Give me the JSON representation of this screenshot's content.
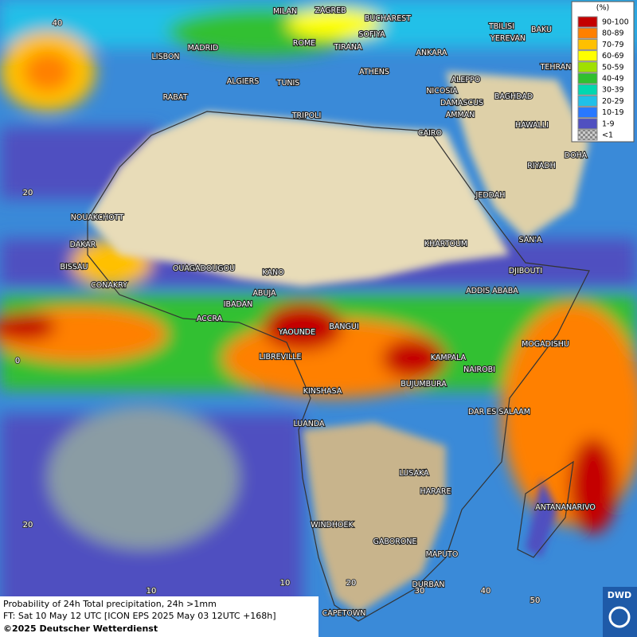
{
  "map": {
    "legend": {
      "title": "(%)",
      "entries": [
        {
          "label": "90-100",
          "color": "#c40000"
        },
        {
          "label": "80-89",
          "color": "#ff8000"
        },
        {
          "label": "70-79",
          "color": "#ffc000"
        },
        {
          "label": "60-69",
          "color": "#ffff00"
        },
        {
          "label": "50-59",
          "color": "#a0e000"
        },
        {
          "label": "40-49",
          "color": "#30c030"
        },
        {
          "label": "30-39",
          "color": "#00d8b0"
        },
        {
          "label": "20-29",
          "color": "#20c0e8"
        },
        {
          "label": "10-19",
          "color": "#2878ff"
        },
        {
          "label": "1-9",
          "color": "#5050c0"
        },
        {
          "label": "<1",
          "color": "#a8a8a8"
        }
      ]
    },
    "cities": [
      "MILAN",
      "ZAGREB",
      "BUCHAREST",
      "TBILISI",
      "BAKU",
      "MADRID",
      "ROME",
      "SOFIYA",
      "TIRANA",
      "YEREVAN",
      "LISBON",
      "ANKARA",
      "TEHRAN",
      "ATHENS",
      "ALGIERS",
      "TUNIS",
      "ALEPPO",
      "NICOSIA",
      "BAGHDAD",
      "RABAT",
      "DAMASCUS",
      "TRIPOLI",
      "AMMAN",
      "HAWALLI",
      "CAIRO",
      "DOHA",
      "RIYADH",
      "JEDDAH",
      "NOUAKCHOTT",
      "DAKAR",
      "KHARTOUM",
      "SAN'A",
      "BISSAU",
      "OUAGADOUGOU",
      "DJIBOUTI",
      "KANO",
      "ABUJA",
      "CONAKRY",
      "ADDIS ABABA",
      "IBADAN",
      "ACCRA",
      "BANGUI",
      "YAOUNDE",
      "MOGADISHU",
      "LIBREVILLE",
      "KAMPALA",
      "NAIROBI",
      "BUJUMBURA",
      "KINSHASA",
      "DAR ES SALAAM",
      "LUANDA",
      "LUSAKA",
      "HARARE",
      "ANTANANARIVO",
      "WINDHOEK",
      "GABORONE",
      "MAPUTO",
      "DURBAN",
      "CAPETOWN"
    ],
    "grid_labels": [
      "40",
      "20",
      "0",
      "20",
      "10",
      "10",
      "20",
      "30",
      "40",
      "50"
    ],
    "footer": {
      "line1": "Probability of 24h Total precipitation, 24h >1mm",
      "line2": "FT: Sat 10 May 12 UTC [ICON EPS 2025 May 03 12UTC +168h]",
      "copyright": "©2025 Deutscher Wetterdienst"
    },
    "logo": "DWD"
  }
}
